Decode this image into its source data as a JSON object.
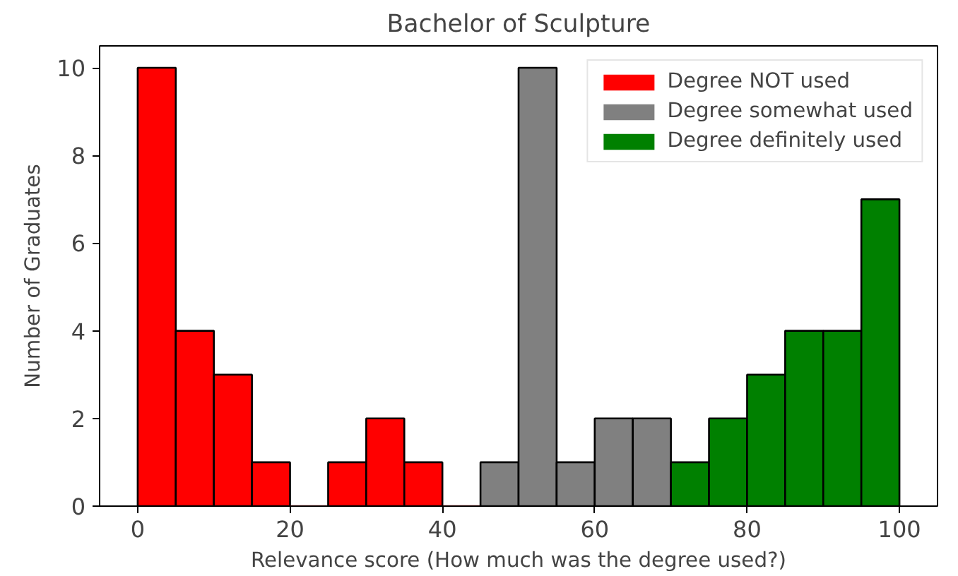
{
  "chart_data": {
    "type": "histogram",
    "title": "Bachelor of Sculpture",
    "xlabel": "Relevance score (How much was the degree used?)",
    "ylabel": "Number of Graduates",
    "bins": [
      0,
      5,
      10,
      15,
      20,
      25,
      30,
      35,
      40,
      45,
      50,
      55,
      60,
      65,
      70,
      75,
      80,
      85,
      90,
      95,
      100
    ],
    "series": [
      {
        "name": "Degree NOT used",
        "color": "#ff0000",
        "values": [
          10,
          4,
          3,
          1,
          0,
          1,
          2,
          1,
          0,
          null,
          null,
          null,
          null,
          null,
          null,
          null,
          null,
          null,
          null,
          null
        ]
      },
      {
        "name": "Degree somewhat used",
        "color": "#808080",
        "values": [
          null,
          null,
          null,
          null,
          null,
          null,
          null,
          null,
          null,
          1,
          10,
          1,
          2,
          2,
          null,
          null,
          null,
          null,
          null,
          null
        ]
      },
      {
        "name": "Degree definitely used",
        "color": "#008000",
        "values": [
          null,
          null,
          null,
          null,
          null,
          null,
          null,
          null,
          null,
          null,
          null,
          null,
          null,
          null,
          1,
          2,
          3,
          4,
          4,
          7
        ]
      }
    ],
    "xlim": [
      -5,
      105
    ],
    "ylim": [
      0,
      10.5
    ],
    "xticks": [
      0,
      20,
      40,
      60,
      80,
      100
    ],
    "yticks": [
      0,
      2,
      4,
      6,
      8,
      10
    ],
    "legend": "top right"
  }
}
